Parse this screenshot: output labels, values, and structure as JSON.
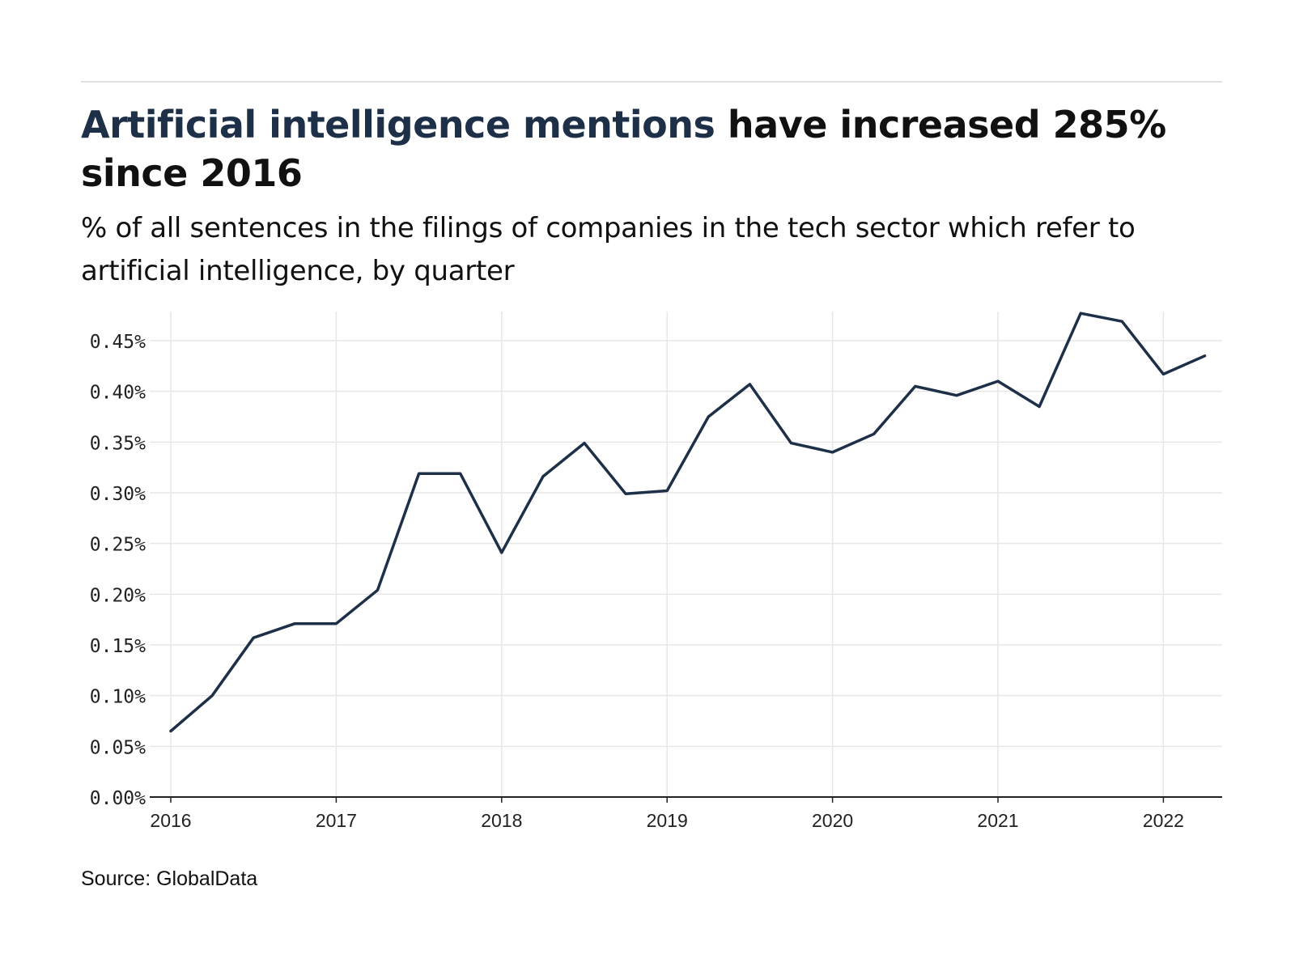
{
  "header": {
    "title_accent": "Artificial intelligence mentions",
    "title_rest": " have increased 285% since 2016",
    "subtitle": "% of all sentences in the filings of companies in the tech sector which refer to artificial intelligence, by quarter"
  },
  "footer": {
    "source": "Source: GlobalData"
  },
  "colors": {
    "line": "#1e3048",
    "accent": "#1e3048",
    "grid": "#e6e6e6",
    "axis": "#222222"
  },
  "chart_data": {
    "type": "line",
    "title": "Artificial intelligence mentions have increased 285% since 2016",
    "subtitle": "% of all sentences in the filings of companies in the tech sector which refer to artificial intelligence, by quarter",
    "xlabel": "",
    "ylabel": "",
    "grid": true,
    "x_ticks": [
      "2016",
      "2017",
      "2018",
      "2019",
      "2020",
      "2021",
      "2022"
    ],
    "y_ticks": [
      "0.00%",
      "0.05%",
      "0.10%",
      "0.15%",
      "0.20%",
      "0.25%",
      "0.30%",
      "0.35%",
      "0.40%",
      "0.45%"
    ],
    "ylim": [
      0,
      0.478
    ],
    "xlim": [
      "2016Q1",
      "2022Q3"
    ],
    "x": [
      "2016Q1",
      "2016Q2",
      "2016Q3",
      "2016Q4",
      "2017Q1",
      "2017Q2",
      "2017Q3",
      "2017Q4",
      "2018Q1",
      "2018Q2",
      "2018Q3",
      "2018Q4",
      "2019Q1",
      "2019Q2",
      "2019Q3",
      "2019Q4",
      "2020Q1",
      "2020Q2",
      "2020Q3",
      "2020Q4",
      "2021Q1",
      "2021Q2",
      "2021Q3",
      "2021Q4",
      "2022Q1",
      "2022Q2"
    ],
    "series": [
      {
        "values": [
          0.065,
          0.1,
          0.157,
          0.171,
          0.171,
          0.204,
          0.319,
          0.319,
          0.241,
          0.316,
          0.349,
          0.299,
          0.302,
          0.375,
          0.407,
          0.349,
          0.34,
          0.358,
          0.405,
          0.396,
          0.41,
          0.385,
          0.477,
          0.469,
          0.417,
          0.435
        ]
      }
    ]
  }
}
